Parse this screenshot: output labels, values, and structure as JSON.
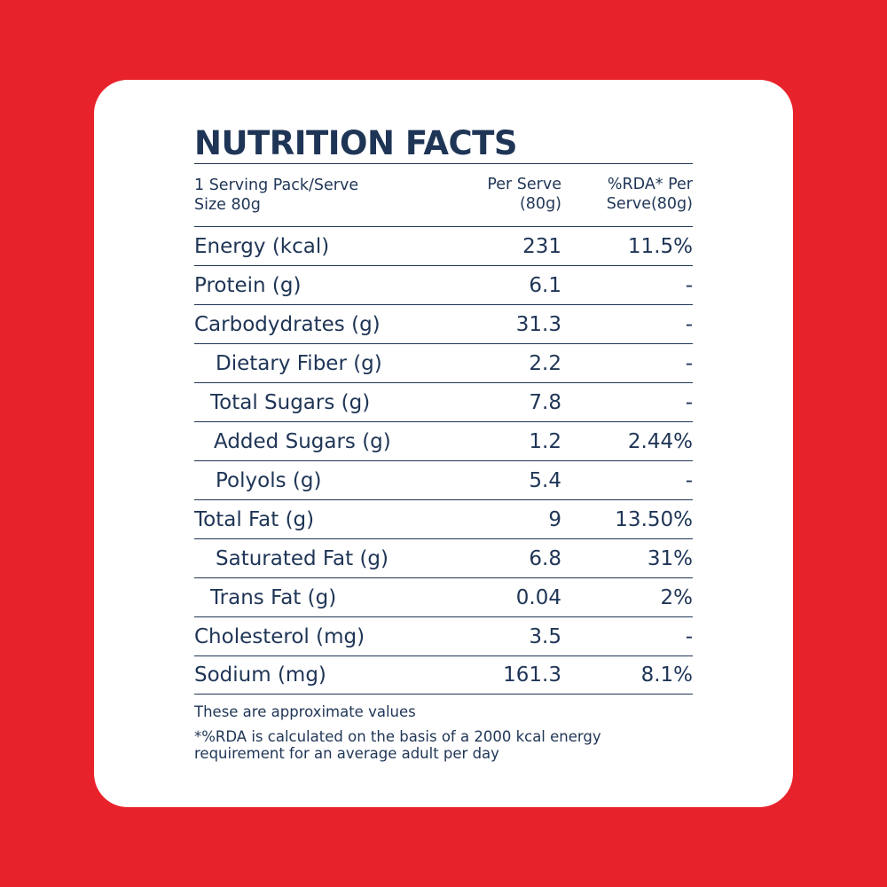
{
  "title": "NUTRITION FACTS",
  "header": {
    "serving": "1 Serving Pack/Serve\nSize 80g",
    "serving_l1": "1 Serving Pack/Serve",
    "serving_l2": "Size 80g",
    "per_serve_l1": "Per Serve",
    "per_serve_l2": "(80g)",
    "rda_l1": "%RDA* Per",
    "rda_l2": "Serve(80g)"
  },
  "rows": [
    {
      "name": "Energy (kcal)",
      "value": "231",
      "rda": "11.5%"
    },
    {
      "name": "Protein (g)",
      "value": "6.1",
      "rda": "-"
    },
    {
      "name": "Carbodydrates (g)",
      "value": "31.3",
      "rda": "-"
    },
    {
      "name": "Dietary Fiber (g)",
      "value": "2.2",
      "rda": "-"
    },
    {
      "name": "Total Sugars (g)",
      "value": "7.8",
      "rda": "-"
    },
    {
      "name": "Added Sugars (g)",
      "value": "1.2",
      "rda": "2.44%"
    },
    {
      "name": "Polyols (g)",
      "value": "5.4",
      "rda": "-"
    },
    {
      "name": "Total Fat (g)",
      "value": "9",
      "rda": "13.50%"
    },
    {
      "name": "Saturated Fat (g)",
      "value": "6.8",
      "rda": "31%"
    },
    {
      "name": "Trans Fat (g)",
      "value": "0.04",
      "rda": "2%"
    },
    {
      "name": "Cholesterol (mg)",
      "value": "3.5",
      "rda": "-"
    },
    {
      "name": "Sodium (mg)",
      "value": "161.3",
      "rda": "8.1%"
    }
  ],
  "notes": {
    "approx": "These are approximate values",
    "rda_note_l1": "*%RDA is calculated on the basis of a 2000 kcal energy",
    "rda_note_l2": "requirement for an average adult per day"
  },
  "colors": {
    "background": "#e8222a",
    "card": "#ffffff",
    "text": "#1f3556"
  }
}
